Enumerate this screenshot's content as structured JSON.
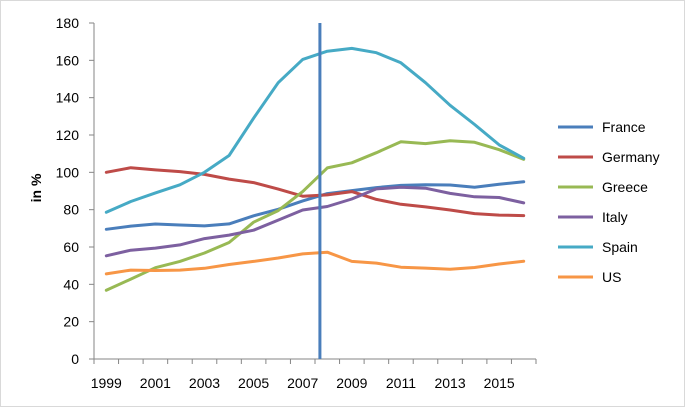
{
  "chart_data": {
    "type": "line",
    "ylabel": "in %",
    "xlabel": "",
    "title": "",
    "x": [
      1999,
      2000,
      2001,
      2002,
      2003,
      2004,
      2005,
      2006,
      2007,
      2008,
      2009,
      2010,
      2011,
      2012,
      2013,
      2014,
      2015,
      2016
    ],
    "x_tick_labels": [
      "1999",
      "2001",
      "2003",
      "2005",
      "2007",
      "2009",
      "2011",
      "2013",
      "2015"
    ],
    "ylim": [
      0,
      180
    ],
    "y_ticks": [
      0,
      20,
      40,
      60,
      80,
      100,
      120,
      140,
      160,
      180
    ],
    "grid": false,
    "legend_position": "right",
    "vertical_marker": {
      "x": 2007.7,
      "color": "#4a7ebb"
    },
    "series": [
      {
        "name": "France",
        "color": "#4a7ebb",
        "values": [
          69.5,
          71.2,
          72.3,
          71.8,
          71.3,
          72.4,
          76.7,
          80.2,
          84.7,
          88.6,
          90.2,
          91.8,
          93.0,
          93.3,
          93.2,
          92.0,
          93.6,
          95.0
        ]
      },
      {
        "name": "Germany",
        "color": "#be4b48",
        "values": [
          100.0,
          102.5,
          101.3,
          100.4,
          98.9,
          96.4,
          94.5,
          91.0,
          87.2,
          87.9,
          89.7,
          85.5,
          82.9,
          81.5,
          79.8,
          77.9,
          77.1,
          76.8
        ]
      },
      {
        "name": "Greece",
        "color": "#98b954",
        "values": [
          36.8,
          42.8,
          48.9,
          52.3,
          56.8,
          62.4,
          73.3,
          79.5,
          89.7,
          102.4,
          105.1,
          110.5,
          116.4,
          115.4,
          116.9,
          116.1,
          112.1,
          107.0
        ]
      },
      {
        "name": "Italy",
        "color": "#7d60a0",
        "values": [
          55.3,
          58.3,
          59.4,
          61.1,
          64.5,
          66.4,
          69.0,
          74.4,
          79.8,
          81.7,
          85.7,
          91.1,
          92.0,
          91.5,
          88.7,
          86.9,
          86.5,
          83.6
        ]
      },
      {
        "name": "Spain",
        "color": "#46aac5",
        "values": [
          78.6,
          84.4,
          89.0,
          93.3,
          100.0,
          109.0,
          129.0,
          148.0,
          160.5,
          164.9,
          166.4,
          164.1,
          158.7,
          148.0,
          135.9,
          125.6,
          114.7,
          107.5
        ]
      },
      {
        "name": "US",
        "color": "#f79646",
        "values": [
          45.6,
          47.6,
          47.4,
          47.6,
          48.6,
          50.6,
          52.3,
          54.1,
          56.3,
          57.2,
          52.3,
          51.4,
          49.2,
          48.7,
          48.1,
          49.0,
          50.9,
          52.4
        ]
      }
    ]
  }
}
